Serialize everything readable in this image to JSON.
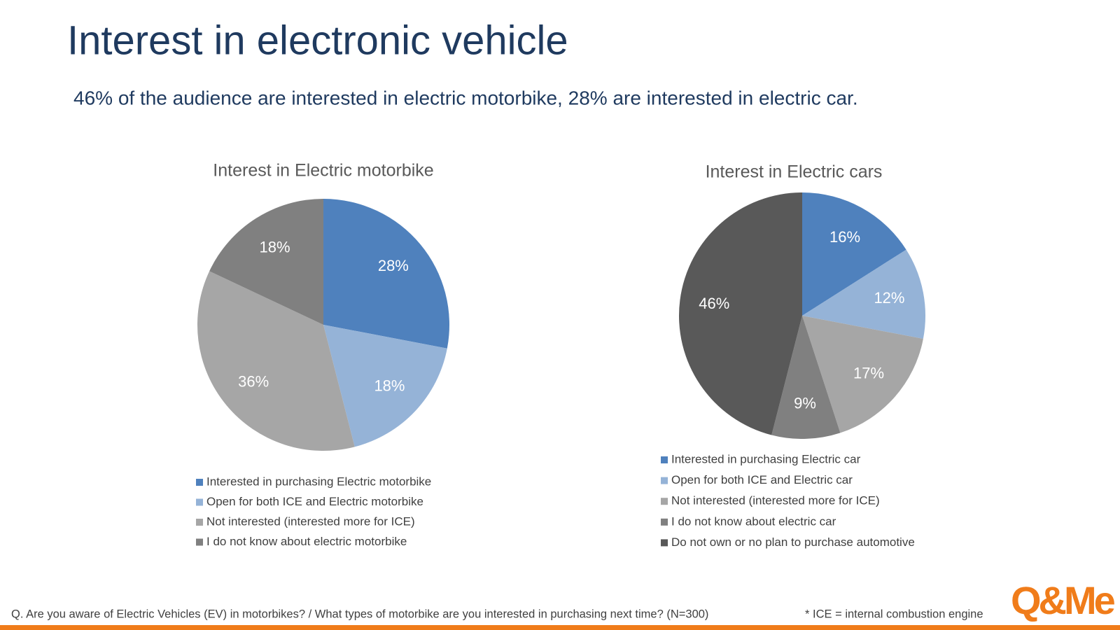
{
  "title": "Interest in electronic vehicle",
  "subtitle": "46% of the audience are interested in electric motorbike, 28% are interested in electric car.",
  "footnote": "Q. Are you aware of Electric Vehicles (EV) in motorbikes? / What types of motorbike are you interested in purchasing next time? (N=300)",
  "note": "* ICE = internal combustion engine",
  "logo": "Q&Me",
  "chart_data": [
    {
      "type": "pie",
      "title": "Interest in Electric motorbike",
      "categories": [
        "Interested in purchasing Electric motorbike",
        "Open for both ICE and Electric motorbike",
        "Not interested (interested more for ICE)",
        "I do not know about electric motorbike"
      ],
      "values": [
        28,
        18,
        36,
        18
      ],
      "value_labels": [
        "28%",
        "18%",
        "36%",
        "18%"
      ],
      "colors": [
        "#4f81bd",
        "#95b3d7",
        "#a6a6a6",
        "#808080"
      ]
    },
    {
      "type": "pie",
      "title": "Interest in Electric cars",
      "categories": [
        "Interested in purchasing Electric car",
        "Open for both ICE and Electric car",
        "Not interested (interested more for ICE)",
        "I do not know about electric car",
        "Do not own or no plan to purchase automotive"
      ],
      "values": [
        16,
        12,
        17,
        9,
        46
      ],
      "value_labels": [
        "16%",
        "12%",
        "17%",
        "9%",
        "46%"
      ],
      "colors": [
        "#4f81bd",
        "#95b3d7",
        "#a6a6a6",
        "#808080",
        "#595959"
      ]
    }
  ]
}
